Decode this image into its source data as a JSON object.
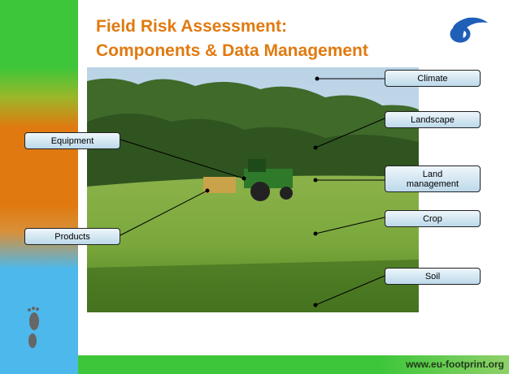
{
  "header": {
    "title_lines": [
      "Field Risk Assessment:",
      "Components & Data Management"
    ]
  },
  "callouts_right": [
    {
      "label": "Climate"
    },
    {
      "label": "Landscape"
    },
    {
      "label": "Land management"
    },
    {
      "label": "Crop"
    },
    {
      "label": "Soil"
    }
  ],
  "callouts_left": [
    {
      "label": "Equipment"
    },
    {
      "label": "Products"
    }
  ],
  "footer": {
    "url": "www.eu-footprint.org"
  }
}
